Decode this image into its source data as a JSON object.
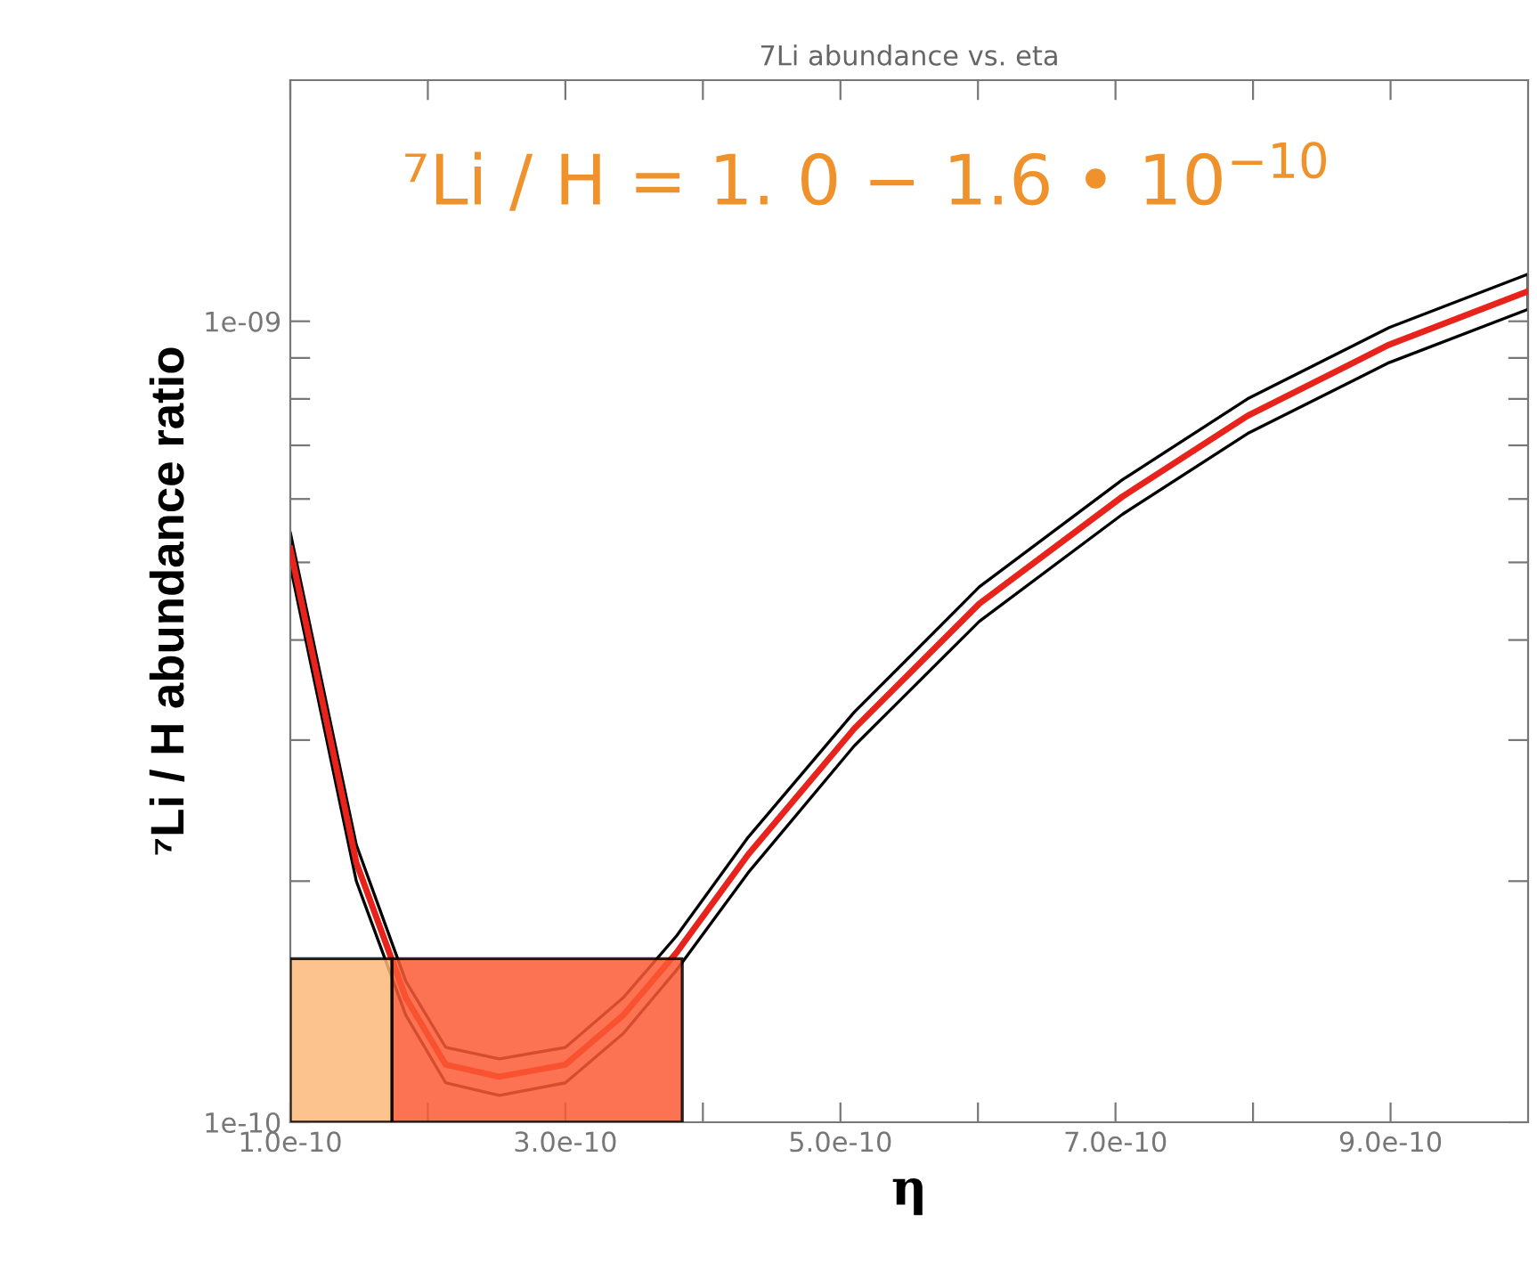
{
  "chart_data": {
    "type": "area",
    "title": "7Li abundance vs. eta",
    "xlabel": "η",
    "ylabel": "⁷Li / H abundance ratio",
    "annotations": [
      "⁷Li / H = 1. 0 − 1.6 • 10$^{−10}$"
    ],
    "log": "y",
    "grid": false,
    "legend": false,
    "marker": "none",
    "line_style": "solid",
    "xlim": [
      1e-10,
      1e-09
    ],
    "xticks": [
      {
        "value": 1e-10,
        "label": "1.0e-10"
      },
      {
        "value": 2e-10,
        "label": null
      },
      {
        "value": 3e-10,
        "label": "3.0e-10"
      },
      {
        "value": 4e-10,
        "label": null
      },
      {
        "value": 5e-10,
        "label": "5.0e-10"
      },
      {
        "value": 6e-10,
        "label": null
      },
      {
        "value": 7e-10,
        "label": "7.0e-10"
      },
      {
        "value": 8e-10,
        "label": null
      },
      {
        "value": 9e-10,
        "label": "9.0e-10"
      }
    ],
    "ylim": [
      1e-10,
      2e-09
    ],
    "yticks": [
      {
        "value": 1e-10,
        "label": "1e-10"
      },
      {
        "value": 2e-10,
        "label": null
      },
      {
        "value": 3e-10,
        "label": null
      },
      {
        "value": 4e-10,
        "label": null
      },
      {
        "value": 5e-10,
        "label": null
      },
      {
        "value": 6e-10,
        "label": null
      },
      {
        "value": 7e-10,
        "label": null
      },
      {
        "value": 8e-10,
        "label": null
      },
      {
        "value": 9e-10,
        "label": null
      },
      {
        "value": 1e-09,
        "label": "1e-09"
      }
    ],
    "series": [
      {
        "color": "#fdb97a",
        "x": [
          1e-10,
          1.74e-10
        ],
        "values": [
          1.6e-10,
          1.6e-10
        ]
      },
      {
        "color": "#fc5a35",
        "x": [
          1.74e-10,
          3.85e-10
        ],
        "values": [
          1.6e-10,
          1.6e-10
        ]
      },
      {
        "type": "line",
        "color": "#e8231c",
        "x": [
          1e-10,
          1.48e-10,
          1.84e-10,
          2.13e-10,
          2.52e-10,
          3e-10,
          3.42e-10,
          3.81e-10,
          4.33e-10,
          5.1e-10,
          6.01e-10,
          7.05e-10,
          7.96e-10,
          8.99e-10,
          1e-09
        ],
        "values": [
          5.2e-10,
          2.11e-10,
          1.43e-10,
          1.18e-10,
          1.14e-10,
          1.18e-10,
          1.36e-10,
          1.63e-10,
          2.16e-10,
          3.1e-10,
          4.44e-10,
          6.04e-10,
          7.62e-10,
          9.35e-10,
          1.09e-09
        ],
        "lower": [
          4.95e-10,
          2e-10,
          1.36e-10,
          1.12e-10,
          1.08e-10,
          1.12e-10,
          1.29e-10,
          1.55e-10,
          2.05e-10,
          2.95e-10,
          4.22e-10,
          5.74e-10,
          7.24e-10,
          8.88e-10,
          1.035e-09
        ],
        "upper": [
          5.45e-10,
          2.22e-10,
          1.5e-10,
          1.24e-10,
          1.2e-10,
          1.24e-10,
          1.43e-10,
          1.71e-10,
          2.27e-10,
          3.25e-10,
          4.66e-10,
          6.34e-10,
          8e-10,
          9.82e-10,
          1.145e-09
        ]
      }
    ]
  }
}
